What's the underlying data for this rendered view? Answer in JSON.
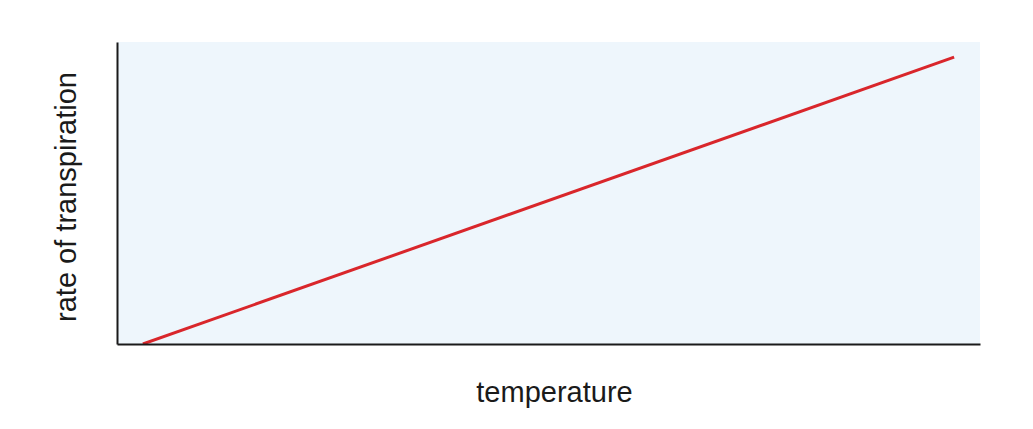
{
  "chart_data": {
    "type": "line",
    "x_label": "temperature",
    "y_label": "rate of transpiration",
    "x": [
      3,
      97
    ],
    "values": [
      0,
      95
    ],
    "color": "#d9262b",
    "xlim": [
      0,
      100
    ],
    "ylim": [
      0,
      100
    ],
    "xticks": [],
    "yticks": [],
    "tick_labels": false,
    "grid": false
  }
}
